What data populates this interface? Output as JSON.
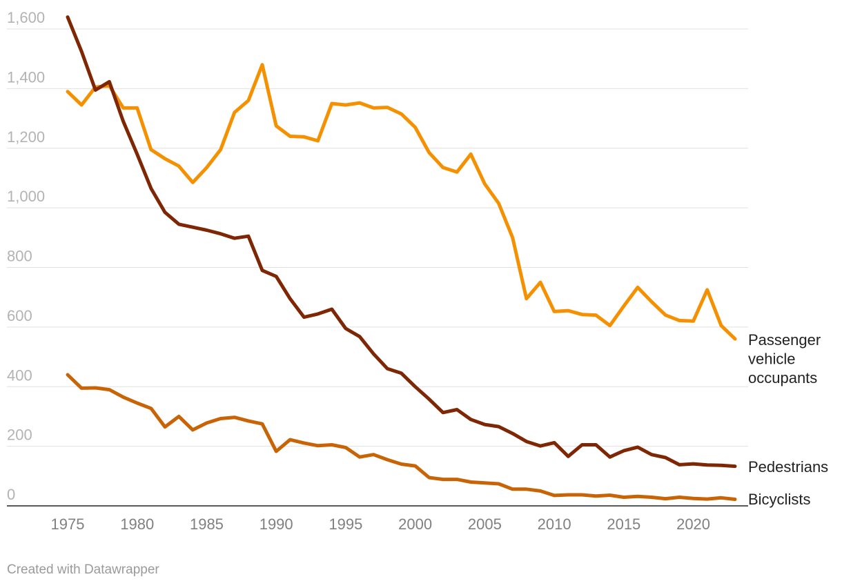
{
  "chart_data": {
    "type": "line",
    "title": "",
    "xlabel": "",
    "ylabel": "",
    "ylim": [
      0,
      1600
    ],
    "xlim": [
      1975,
      2023
    ],
    "yticks": [
      "0",
      "200",
      "400",
      "600",
      "800",
      "1,000",
      "1,200",
      "1,400",
      "1,600"
    ],
    "ytick_values": [
      0,
      200,
      400,
      600,
      800,
      1000,
      1200,
      1400,
      1600
    ],
    "xticks": [
      "1975",
      "1980",
      "1985",
      "1990",
      "1995",
      "2000",
      "2005",
      "2010",
      "2015",
      "2020"
    ],
    "xtick_values": [
      1975,
      1980,
      1985,
      1990,
      1995,
      2000,
      2005,
      2010,
      2015,
      2020
    ],
    "grid": true,
    "x": [
      1975,
      1976,
      1977,
      1978,
      1979,
      1980,
      1981,
      1982,
      1983,
      1984,
      1985,
      1986,
      1987,
      1988,
      1989,
      1990,
      1991,
      1992,
      1993,
      1994,
      1995,
      1996,
      1997,
      1998,
      1999,
      2000,
      2001,
      2002,
      2003,
      2004,
      2005,
      2006,
      2007,
      2008,
      2009,
      2010,
      2011,
      2012,
      2013,
      2014,
      2015,
      2016,
      2017,
      2018,
      2019,
      2020,
      2021,
      2022,
      2023
    ],
    "series": [
      {
        "name": "Passenger vehicle occupants",
        "label_lines": [
          "Passenger",
          "vehicle",
          "occupants"
        ],
        "color": "#f59100",
        "values": [
          1390,
          1345,
          1405,
          1410,
          1335,
          1335,
          1195,
          1165,
          1140,
          1085,
          1135,
          1195,
          1320,
          1360,
          1480,
          1275,
          1240,
          1238,
          1225,
          1350,
          1345,
          1352,
          1335,
          1337,
          1315,
          1270,
          1185,
          1135,
          1120,
          1180,
          1080,
          1015,
          900,
          695,
          750,
          652,
          655,
          642,
          640,
          605,
          670,
          733,
          685,
          640,
          622,
          620,
          725,
          605,
          560
        ]
      },
      {
        "name": "Pedestrians",
        "label_lines": [
          "Pedestrians"
        ],
        "color": "#7f2704",
        "values": [
          1640,
          1525,
          1395,
          1423,
          1290,
          1180,
          1065,
          985,
          945,
          935,
          925,
          913,
          898,
          905,
          790,
          770,
          695,
          633,
          644,
          660,
          595,
          568,
          510,
          460,
          445,
          400,
          358,
          313,
          323,
          290,
          273,
          266,
          243,
          216,
          201,
          212,
          166,
          205,
          205,
          164,
          185,
          197,
          172,
          162,
          138,
          141,
          137,
          136,
          133
        ]
      },
      {
        "name": "Bicyclists",
        "label_lines": [
          "Bicyclists"
        ],
        "color": "#c86405",
        "values": [
          440,
          395,
          396,
          390,
          365,
          345,
          327,
          265,
          300,
          255,
          278,
          293,
          297,
          285,
          275,
          183,
          222,
          211,
          202,
          205,
          196,
          164,
          172,
          155,
          140,
          134,
          95,
          89,
          89,
          80,
          77,
          74,
          56,
          56,
          50,
          35,
          37,
          37,
          33,
          36,
          29,
          32,
          29,
          24,
          29,
          25,
          23,
          27,
          22
        ]
      }
    ]
  },
  "footer": {
    "credit": "Created with Datawrapper"
  }
}
